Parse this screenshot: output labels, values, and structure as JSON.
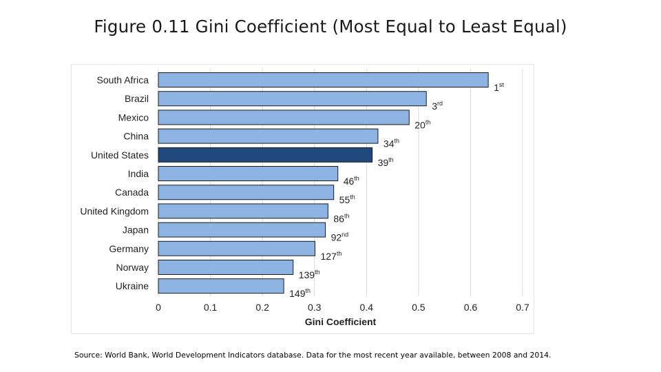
{
  "title": "Figure 0.11 Gini Coefficient (Most Equal to Least Equal)",
  "source": "Source: World Bank, World Development Indicators database. Data for the most recent year available, between 2008 and 2014.",
  "colors": {
    "bar": "#8db3e2",
    "highlight": "#1f497d",
    "bar_stroke": "#1a1a1a",
    "grid": "#d9d9d9"
  },
  "chart_data": {
    "type": "bar",
    "orientation": "horizontal",
    "title": "",
    "xlabel": "Gini Coefficient",
    "ylabel": "",
    "xlim": [
      0,
      0.7
    ],
    "xticks": [
      0,
      0.1,
      0.2,
      0.3,
      0.4,
      0.5,
      0.6,
      0.7
    ],
    "xtick_labels": [
      "0",
      "0.1",
      "0.2",
      "0.3",
      "0.4",
      "0.5",
      "0.6",
      "0.7"
    ],
    "grid": true,
    "categories": [
      "South Africa",
      "Brazil",
      "Mexico",
      "China",
      "United States",
      "India",
      "Canada",
      "United Kingdom",
      "Japan",
      "Germany",
      "Norway",
      "Ukraine"
    ],
    "values": [
      0.634,
      0.515,
      0.482,
      0.422,
      0.411,
      0.345,
      0.337,
      0.326,
      0.321,
      0.301,
      0.259,
      0.241
    ],
    "rank_labels": [
      {
        "num": "1",
        "suffix": "st"
      },
      {
        "num": "3",
        "suffix": "rd"
      },
      {
        "num": "20",
        "suffix": "th"
      },
      {
        "num": "34",
        "suffix": "th"
      },
      {
        "num": "39",
        "suffix": "th"
      },
      {
        "num": "46",
        "suffix": "th"
      },
      {
        "num": "55",
        "suffix": "th"
      },
      {
        "num": "86",
        "suffix": "th"
      },
      {
        "num": "92",
        "suffix": "nd"
      },
      {
        "num": "127",
        "suffix": "th"
      },
      {
        "num": "139",
        "suffix": "th"
      },
      {
        "num": "149",
        "suffix": "th"
      }
    ],
    "highlight_category": "United States"
  }
}
